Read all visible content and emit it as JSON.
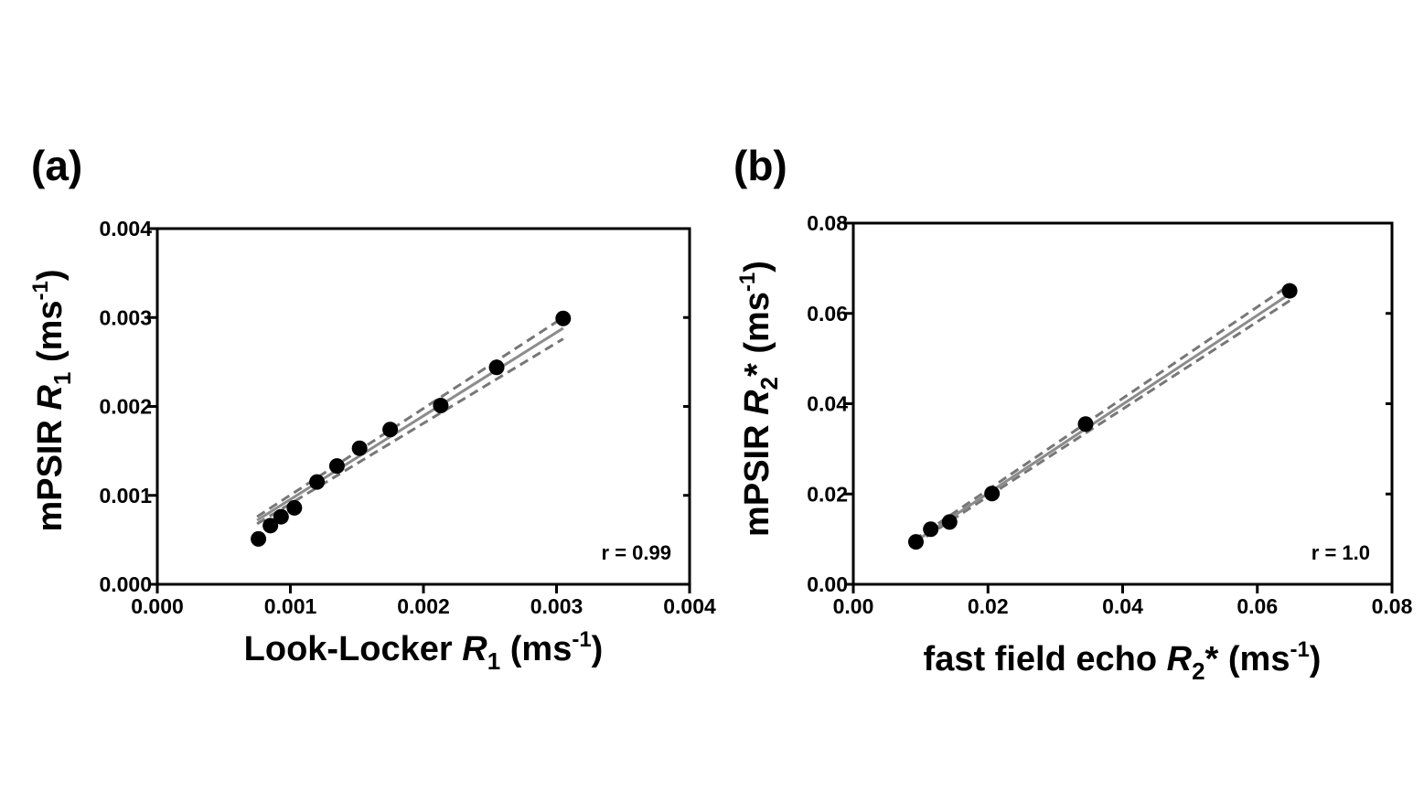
{
  "chart_data": [
    {
      "panel_label": "(a)",
      "type": "scatter",
      "xlabel": {
        "pre": "Look-Locker ",
        "var": "R",
        "sub": "1",
        "post": " (ms",
        "sup": "-1",
        "end": ")"
      },
      "ylabel": {
        "pre": "mPSIR ",
        "var": "R",
        "sub": "1",
        "post": " (ms",
        "sup": "-1",
        "end": ")"
      },
      "xlim": [
        0,
        0.004
      ],
      "ylim": [
        0,
        0.004
      ],
      "xticks": [
        0,
        0.001,
        0.002,
        0.003,
        0.004
      ],
      "yticks": [
        0,
        0.001,
        0.002,
        0.003,
        0.004
      ],
      "xtick_labels": [
        "0.000",
        "0.001",
        "0.002",
        "0.003",
        "0.004"
      ],
      "ytick_labels": [
        "0.000",
        "0.001",
        "0.002",
        "0.003",
        "0.004"
      ],
      "annotation": "r = 0.99",
      "points": {
        "x": [
          0.00076,
          0.00085,
          0.00093,
          0.00103,
          0.0012,
          0.00135,
          0.00152,
          0.00175,
          0.00213,
          0.00255,
          0.00305
        ],
        "y": [
          0.00051,
          0.00066,
          0.00076,
          0.00086,
          0.00115,
          0.00133,
          0.00153,
          0.00174,
          0.00201,
          0.00244,
          0.00299
        ]
      },
      "fit_line": {
        "x": [
          0.00075,
          0.00305
        ],
        "y": [
          0.00072,
          0.00288
        ]
      },
      "confidence_upper": {
        "x": [
          0.00075,
          0.00305
        ],
        "y": [
          0.00076,
          0.003
        ]
      },
      "confidence_lower": {
        "x": [
          0.00075,
          0.00305
        ],
        "y": [
          0.00068,
          0.00276
        ]
      },
      "colors": {
        "points": "#000000",
        "fit": "#8c8c8c",
        "ci": "#777777"
      }
    },
    {
      "panel_label": "(b)",
      "type": "scatter",
      "xlabel": {
        "pre": "fast field echo ",
        "var": "R",
        "sub": "2",
        "post": "* (ms",
        "sup": "-1",
        "end": ")"
      },
      "ylabel": {
        "pre": "mPSIR ",
        "var": "R",
        "sub": "2",
        "post": "* (ms",
        "sup": "-1",
        "end": ")"
      },
      "xlim": [
        0,
        0.08
      ],
      "ylim": [
        0,
        0.08
      ],
      "xticks": [
        0,
        0.02,
        0.04,
        0.06,
        0.08
      ],
      "yticks": [
        0,
        0.02,
        0.04,
        0.06,
        0.08
      ],
      "xtick_labels": [
        "0.00",
        "0.02",
        "0.04",
        "0.06",
        "0.08"
      ],
      "ytick_labels": [
        "0.00",
        "0.02",
        "0.04",
        "0.06",
        "0.08"
      ],
      "annotation": "r = 1.0",
      "points": {
        "x": [
          0.0093,
          0.0115,
          0.0143,
          0.0206,
          0.0345,
          0.0648
        ],
        "y": [
          0.0094,
          0.0122,
          0.0138,
          0.0201,
          0.0355,
          0.065
        ]
      },
      "fit_line": {
        "x": [
          0.009,
          0.065
        ],
        "y": [
          0.0093,
          0.0645
        ]
      },
      "confidence_upper": {
        "x": [
          0.009,
          0.065
        ],
        "y": [
          0.0098,
          0.0665
        ]
      },
      "confidence_lower": {
        "x": [
          0.009,
          0.065
        ],
        "y": [
          0.0088,
          0.063
        ]
      },
      "colors": {
        "points": "#000000",
        "fit": "#8c8c8c",
        "ci": "#777777"
      }
    }
  ]
}
